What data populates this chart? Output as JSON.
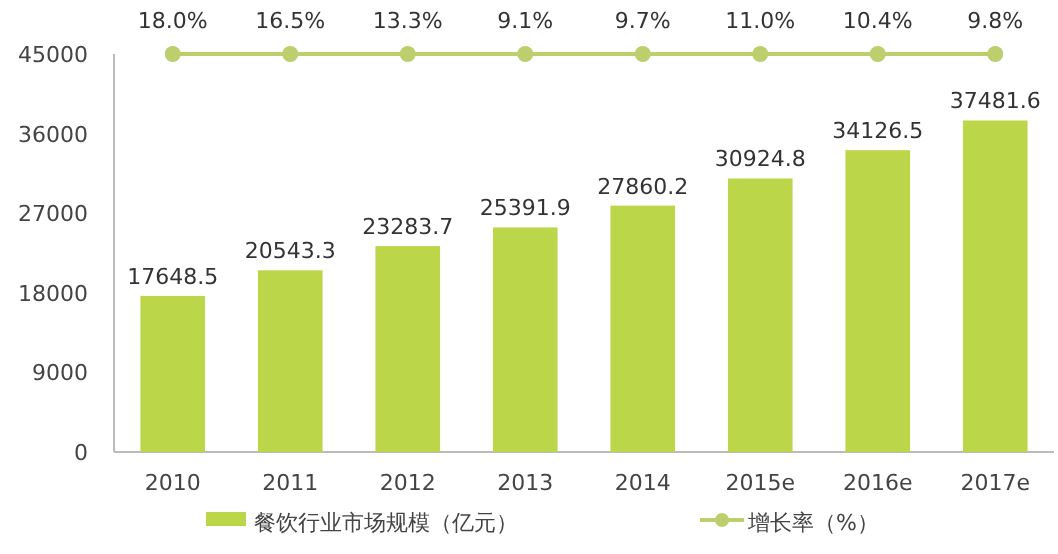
{
  "chart_data": {
    "type": "bar",
    "categories": [
      "2010",
      "2011",
      "2012",
      "2013",
      "2014",
      "2015e",
      "2016e",
      "2017e"
    ],
    "ylim": [
      0,
      45000
    ],
    "yticks": [
      0,
      9000,
      18000,
      27000,
      36000,
      45000
    ],
    "data_labels": true,
    "legend": "bottom",
    "grid": false,
    "marker": "circle",
    "series": [
      {
        "name": "餐饮行业市场规模（亿元）",
        "color": "#bcd64a",
        "values": [
          17648.5,
          20543.3,
          23283.7,
          25391.9,
          27860.2,
          30924.8,
          34126.5,
          37481.6
        ]
      }
    ],
    "ref_lines": [
      {
        "axis": "y",
        "value": 45000,
        "label": "增长率（%）",
        "color": "#bccf6c"
      }
    ],
    "annotations": [
      {
        "text": "18.0%",
        "x": "2010",
        "y": 45000
      },
      {
        "text": "16.5%",
        "x": "2011",
        "y": 45000
      },
      {
        "text": "13.3%",
        "x": "2012",
        "y": 45000
      },
      {
        "text": "9.1%",
        "x": "2013",
        "y": 45000
      },
      {
        "text": "9.7%",
        "x": "2014",
        "y": 45000
      },
      {
        "text": "11.0%",
        "x": "2015e",
        "y": 45000
      },
      {
        "text": "10.4%",
        "x": "2016e",
        "y": 45000
      },
      {
        "text": "9.8%",
        "x": "2017e",
        "y": 45000
      }
    ]
  }
}
